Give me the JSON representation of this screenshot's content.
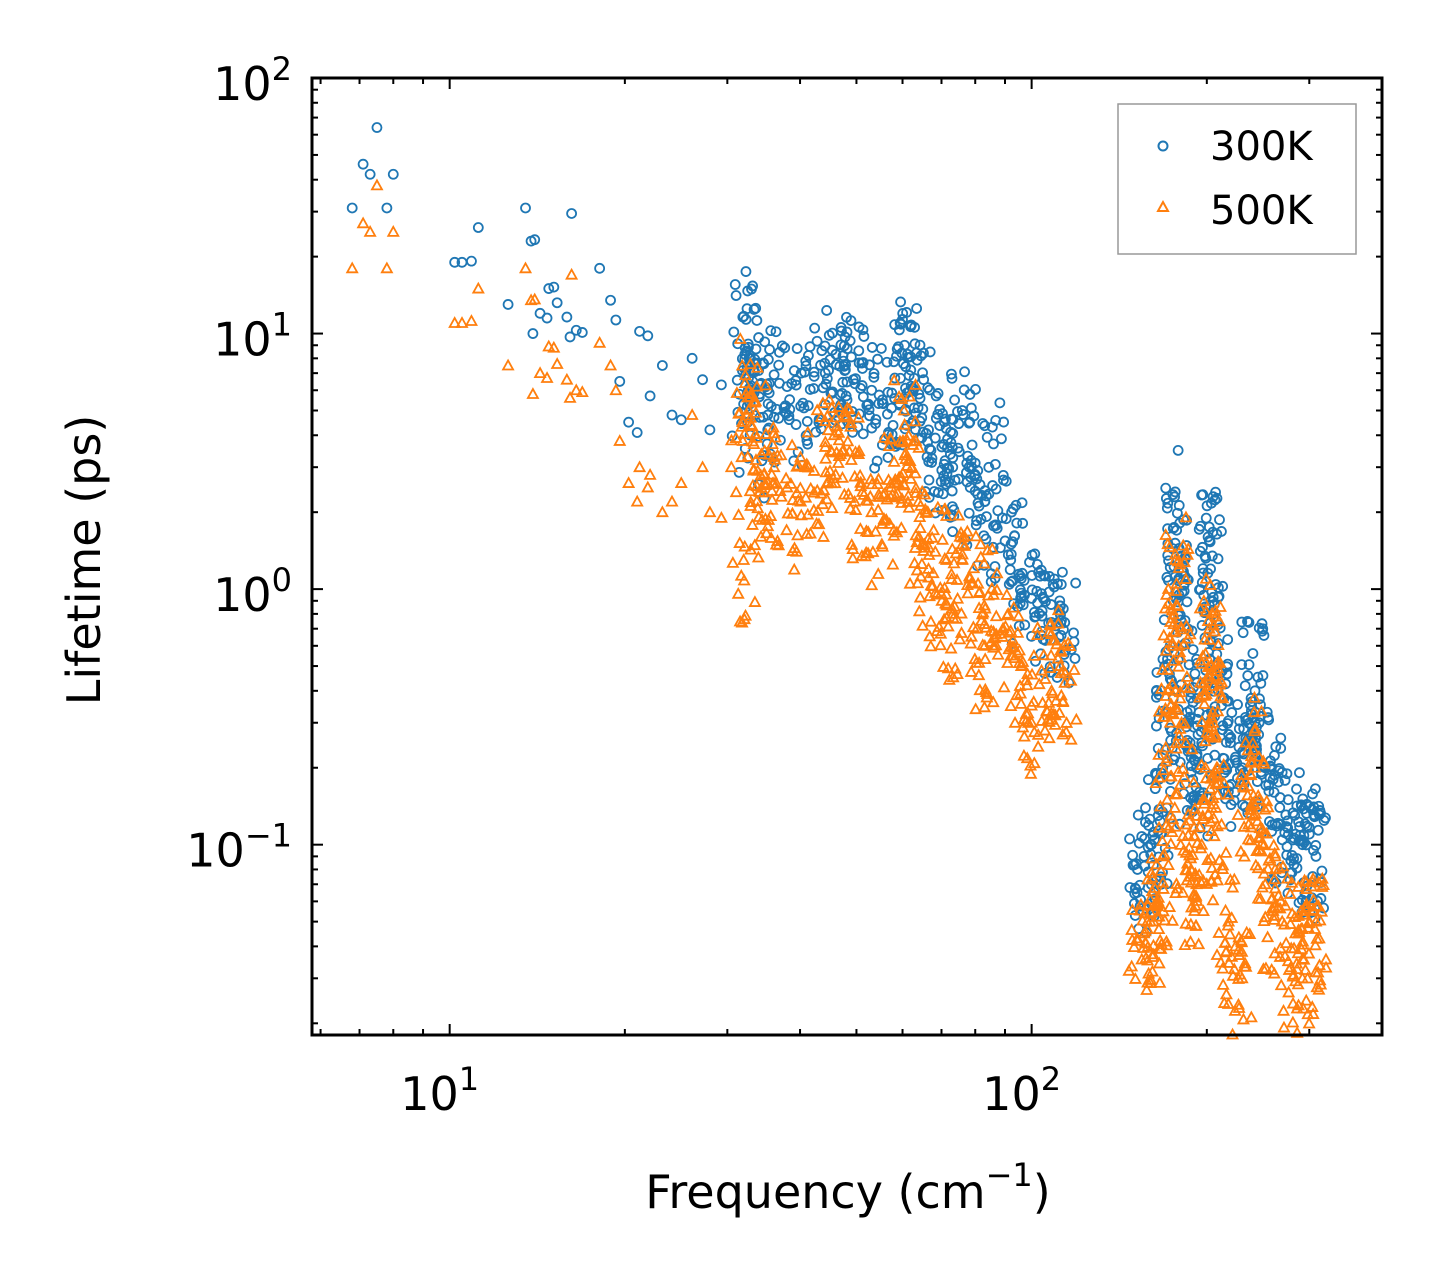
{
  "chart_data": {
    "type": "scatter",
    "title": "",
    "xlabel": "Frequency (cm",
    "xlabel_exponent": "−1",
    "xlabel_suffix": ")",
    "ylabel": "Lifetime (ps)",
    "xscale": "log",
    "yscale": "log",
    "xlim": [
      5.8,
      400
    ],
    "ylim": [
      0.018,
      100
    ],
    "x_ticks": [
      {
        "value": 10,
        "base": "10",
        "exponent": "1"
      },
      {
        "value": 100,
        "base": "10",
        "exponent": "2"
      }
    ],
    "y_ticks": [
      {
        "value": 0.1,
        "base": "10",
        "exponent": "−1"
      },
      {
        "value": 1,
        "base": "10",
        "exponent": "0"
      },
      {
        "value": 10,
        "base": "10",
        "exponent": "1"
      },
      {
        "value": 100,
        "base": "10",
        "exponent": "2"
      }
    ],
    "grid": false,
    "legend_position": "top-right",
    "series": [
      {
        "name": "300K",
        "marker": "circle",
        "color": "#1f77b4",
        "points": [
          [
            6.8,
            31
          ],
          [
            7.1,
            46
          ],
          [
            7.3,
            42
          ],
          [
            7.5,
            64
          ],
          [
            7.8,
            31
          ],
          [
            8.0,
            42
          ],
          [
            10.2,
            19
          ],
          [
            10.5,
            19
          ],
          [
            10.9,
            19.2
          ],
          [
            11.2,
            26
          ],
          [
            12.6,
            13
          ],
          [
            13.5,
            31
          ],
          [
            13.8,
            23
          ],
          [
            14.0,
            23.3
          ],
          [
            13.9,
            10
          ],
          [
            14.3,
            12
          ],
          [
            14.8,
            15
          ],
          [
            15.1,
            15.2
          ],
          [
            14.7,
            11.5
          ],
          [
            15.3,
            13.2
          ],
          [
            16.2,
            29.5
          ],
          [
            16.5,
            10.3
          ],
          [
            16.9,
            10.1
          ],
          [
            15.9,
            11.6
          ],
          [
            16.1,
            9.7
          ],
          [
            18.1,
            18
          ],
          [
            18.9,
            13.5
          ],
          [
            19.3,
            11.3
          ],
          [
            19.6,
            6.5
          ],
          [
            21.2,
            10.2
          ],
          [
            21.9,
            9.8
          ],
          [
            20.3,
            4.5
          ],
          [
            21.0,
            4.1
          ],
          [
            22.1,
            5.7
          ],
          [
            23.2,
            7.5
          ],
          [
            24.1,
            4.8
          ],
          [
            25.0,
            4.6
          ],
          [
            26.1,
            8.0
          ],
          [
            27.2,
            6.6
          ],
          [
            28.0,
            4.2
          ],
          [
            29.3,
            6.3
          ],
          [
            31.9,
            11.6
          ],
          [
            32.2,
            8.8
          ],
          [
            33.6,
            8.7
          ],
          [
            34.1,
            5.8
          ],
          [
            32.0,
            5.3
          ],
          [
            35.2,
            4.2
          ],
          [
            36.1,
            6.9
          ],
          [
            38.0,
            6.2
          ],
          [
            40.1,
            5.2
          ],
          [
            42.3,
            6.8
          ],
          [
            44.2,
            7.0
          ],
          [
            46.1,
            8.3
          ],
          [
            47.5,
            7.8
          ],
          [
            49.0,
            8.1
          ],
          [
            51.2,
            7.3
          ],
          [
            53.1,
            6.0
          ],
          [
            55.4,
            5.5
          ],
          [
            58.2,
            6.7
          ],
          [
            60.5,
            9.0
          ],
          [
            61.2,
            8.3
          ],
          [
            62.0,
            7.2
          ],
          [
            64.0,
            5.8
          ],
          [
            66.5,
            4.2
          ],
          [
            68.3,
            3.9
          ],
          [
            70.1,
            3.6
          ],
          [
            73.2,
            3.0
          ],
          [
            76.0,
            5.0
          ],
          [
            78.3,
            4.5
          ],
          [
            80.5,
            2.7
          ],
          [
            83.1,
            2.2
          ],
          [
            86.0,
            3.7
          ],
          [
            89.1,
            1.9
          ],
          [
            92.2,
            1.5
          ],
          [
            96.0,
            1.1
          ],
          [
            100.0,
            0.92
          ],
          [
            104.0,
            0.96
          ],
          [
            108.0,
            0.87
          ],
          [
            112.0,
            0.8
          ],
          [
            114.0,
            0.74
          ],
          [
            152.0,
            0.08
          ],
          [
            156.0,
            0.09
          ],
          [
            160.0,
            0.1
          ],
          [
            165.0,
            0.13
          ],
          [
            168.0,
            0.2
          ],
          [
            171.0,
            0.33
          ],
          [
            173.0,
            0.6
          ],
          [
            175.0,
            0.9
          ],
          [
            176.5,
            2.4
          ],
          [
            177.5,
            1.7
          ],
          [
            179.0,
            1.1
          ],
          [
            181.0,
            0.6
          ],
          [
            184.0,
            0.3
          ],
          [
            188.0,
            0.22
          ],
          [
            192.0,
            0.2
          ],
          [
            196.0,
            0.25
          ],
          [
            199.0,
            0.4
          ],
          [
            201.0,
            1.6
          ],
          [
            202.0,
            1.55
          ],
          [
            203.0,
            1.2
          ],
          [
            205.0,
            0.8
          ],
          [
            208.0,
            0.5
          ],
          [
            212.0,
            0.35
          ],
          [
            218.0,
            0.27
          ],
          [
            224.0,
            0.22
          ],
          [
            230.0,
            0.2
          ],
          [
            236.0,
            0.26
          ],
          [
            240.0,
            0.56
          ],
          [
            242.0,
            0.4
          ],
          [
            246.0,
            0.3
          ],
          [
            252.0,
            0.2
          ],
          [
            260.0,
            0.18
          ],
          [
            268.0,
            0.12
          ],
          [
            276.0,
            0.15
          ],
          [
            284.0,
            0.11
          ],
          [
            292.0,
            0.1
          ],
          [
            300.0,
            0.11
          ],
          [
            305.0,
            0.095
          ],
          [
            308.0,
            0.09
          ]
        ]
      },
      {
        "name": "500K",
        "marker": "triangle",
        "color": "#ff7f0e",
        "points": [
          [
            6.8,
            18
          ],
          [
            7.1,
            27
          ],
          [
            7.3,
            25
          ],
          [
            7.5,
            38
          ],
          [
            7.8,
            18
          ],
          [
            8.0,
            25
          ],
          [
            10.2,
            11
          ],
          [
            10.5,
            11
          ],
          [
            10.9,
            11.2
          ],
          [
            11.2,
            15
          ],
          [
            12.6,
            7.5
          ],
          [
            13.5,
            18
          ],
          [
            13.8,
            13.5
          ],
          [
            14.0,
            13.6
          ],
          [
            13.9,
            5.8
          ],
          [
            14.3,
            7
          ],
          [
            14.8,
            8.9
          ],
          [
            15.1,
            8.8
          ],
          [
            14.7,
            6.7
          ],
          [
            15.3,
            7.6
          ],
          [
            16.2,
            17
          ],
          [
            16.5,
            6.0
          ],
          [
            16.9,
            5.9
          ],
          [
            15.9,
            6.6
          ],
          [
            16.1,
            5.6
          ],
          [
            18.1,
            9.2
          ],
          [
            18.9,
            7.5
          ],
          [
            19.3,
            6.0
          ],
          [
            19.6,
            3.8
          ],
          [
            21.2,
            3.0
          ],
          [
            21.9,
            2.5
          ],
          [
            20.3,
            2.6
          ],
          [
            21.0,
            2.2
          ],
          [
            22.1,
            2.8
          ],
          [
            23.2,
            2.0
          ],
          [
            24.1,
            2.2
          ],
          [
            25.0,
            2.6
          ],
          [
            26.1,
            4.8
          ],
          [
            27.2,
            3.0
          ],
          [
            28.0,
            2.0
          ],
          [
            29.3,
            1.9
          ],
          [
            31.9,
            3.8
          ],
          [
            32.2,
            6.4
          ],
          [
            33.6,
            4.9
          ],
          [
            34.1,
            2.4
          ],
          [
            32.0,
            1.3
          ],
          [
            35.2,
            2.6
          ],
          [
            36.1,
            3.0
          ],
          [
            38.0,
            2.5
          ],
          [
            40.1,
            2.2
          ],
          [
            42.3,
            2.9
          ],
          [
            44.2,
            3.6
          ],
          [
            46.1,
            4.7
          ],
          [
            47.5,
            3.5
          ],
          [
            49.0,
            3.2
          ],
          [
            51.2,
            2.4
          ],
          [
            53.1,
            2.0
          ],
          [
            55.4,
            1.8
          ],
          [
            58.2,
            2.6
          ],
          [
            60.5,
            4.4
          ],
          [
            61.2,
            3.8
          ],
          [
            62.0,
            2.7
          ],
          [
            64.0,
            1.6
          ],
          [
            66.5,
            1.2
          ],
          [
            68.3,
            1.4
          ],
          [
            70.1,
            0.9
          ],
          [
            73.2,
            0.8
          ],
          [
            76.0,
            1.3
          ],
          [
            78.3,
            1.1
          ],
          [
            80.5,
            0.7
          ],
          [
            83.1,
            0.6
          ],
          [
            86.0,
            0.95
          ],
          [
            89.1,
            0.65
          ],
          [
            92.2,
            0.55
          ],
          [
            96.0,
            0.5
          ],
          [
            100.0,
            0.3
          ],
          [
            104.0,
            0.48
          ],
          [
            108.0,
            0.55
          ],
          [
            112.0,
            0.5
          ],
          [
            114.0,
            0.43
          ],
          [
            152.0,
            0.042
          ],
          [
            156.0,
            0.045
          ],
          [
            160.0,
            0.05
          ],
          [
            165.0,
            0.06
          ],
          [
            168.0,
            0.09
          ],
          [
            171.0,
            0.15
          ],
          [
            173.0,
            0.3
          ],
          [
            175.0,
            0.6
          ],
          [
            176.5,
            1.3
          ],
          [
            177.5,
            1.05
          ],
          [
            179.0,
            0.6
          ],
          [
            181.0,
            0.3
          ],
          [
            184.0,
            0.12
          ],
          [
            188.0,
            0.08
          ],
          [
            192.0,
            0.07
          ],
          [
            196.0,
            0.1
          ],
          [
            199.0,
            0.2
          ],
          [
            201.0,
            0.75
          ],
          [
            202.0,
            0.7
          ],
          [
            203.0,
            0.5
          ],
          [
            205.0,
            0.3
          ],
          [
            208.0,
            0.2
          ],
          [
            212.0,
            0.12
          ],
          [
            218.0,
            0.05
          ],
          [
            224.0,
            0.04
          ],
          [
            230.0,
            0.03
          ],
          [
            236.0,
            0.12
          ],
          [
            240.0,
            0.25
          ],
          [
            242.0,
            0.2
          ],
          [
            246.0,
            0.15
          ],
          [
            252.0,
            0.07
          ],
          [
            260.0,
            0.055
          ],
          [
            268.0,
            0.06
          ],
          [
            276.0,
            0.035
          ],
          [
            284.0,
            0.045
          ],
          [
            292.0,
            0.03
          ],
          [
            300.0,
            0.05
          ],
          [
            305.0,
            0.055
          ],
          [
            308.0,
            0.05
          ]
        ]
      }
    ]
  }
}
